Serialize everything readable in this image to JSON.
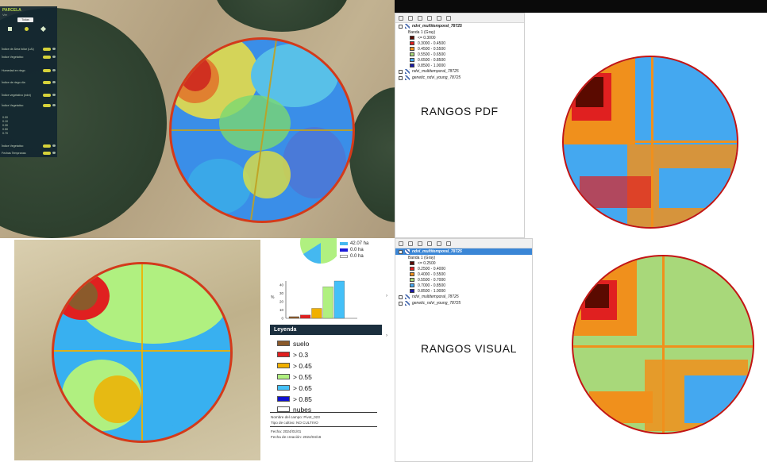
{
  "sidebar": {
    "title": "PARCELA",
    "subtitle": "Ver",
    "button": "Todas",
    "rows": [
      {
        "label": "Índice de Área foliar (LAI)"
      },
      {
        "label": "Índice Vegetativo"
      },
      {
        "label": "Humedad en riego"
      },
      {
        "label": "Índice de riego día"
      },
      {
        "label": "Índice vegetativo (ndvi)"
      },
      {
        "label": "Índice Vegetativo"
      }
    ],
    "values": [
      "0.00",
      "0.10",
      "0.30",
      "0.50",
      "0.70"
    ],
    "footer_rows": [
      {
        "label": "Índice Vegetativo"
      },
      {
        "label": "Fechas Tempranas"
      }
    ]
  },
  "qgis_top": {
    "layer_name": "ndvi_multitemporal_78725",
    "band": "Banda 1 (Gray)",
    "classes": [
      {
        "label": "<= 0.3000",
        "color": "#5a0a00"
      },
      {
        "label": "0.3000 - 0.4500",
        "color": "#e02020"
      },
      {
        "label": "0.4500 - 0.5500",
        "color": "#f0901c"
      },
      {
        "label": "0.5500 - 0.6500",
        "color": "#a8d87a"
      },
      {
        "label": "0.6500 - 0.8500",
        "color": "#44a8f0"
      },
      {
        "label": "0.8500 - 1.0000",
        "color": "#1a1aa8"
      }
    ],
    "other_layers": [
      "ndvi_multitemporal_78725",
      "genetic_ndvi_young_78725"
    ]
  },
  "qgis_bottom": {
    "layer_name": "ndvi_multitemporal_78725",
    "band": "Banda 1 (Gray)",
    "classes": [
      {
        "label": "<= 0.2500",
        "color": "#5a0a00"
      },
      {
        "label": "0.2500 - 0.4000",
        "color": "#e02020"
      },
      {
        "label": "0.4000 - 0.5500",
        "color": "#f0901c"
      },
      {
        "label": "0.5500 - 0.7000",
        "color": "#a8d87a"
      },
      {
        "label": "0.7000 - 0.8500",
        "color": "#44a8f0"
      },
      {
        "label": "0.8500 - 1.0000",
        "color": "#1a1aa8"
      }
    ],
    "other_layers": [
      "ndvi_multitemporal_78725",
      "genetic_ndvi_young_78725"
    ]
  },
  "labels": {
    "pdf": "RANGOS PDF",
    "visual": "RANGOS VISUAL"
  },
  "report": {
    "pie_legend": [
      {
        "label": "42.07 ha",
        "color": "#44b8f0"
      },
      {
        "label": "0.0 ha",
        "color": "#1a1ad8"
      },
      {
        "label": "0.0 ha",
        "color": "#ffffff"
      }
    ],
    "legend_title": "Leyenda",
    "legend": [
      {
        "label": "suelo",
        "color": "#8b5a2b"
      },
      {
        "label": "> 0.3",
        "color": "#e02020"
      },
      {
        "label": "> 0.45",
        "color": "#f0b000"
      },
      {
        "label": "> 0.55",
        "color": "#b0f080"
      },
      {
        "label": "> 0.65",
        "color": "#44c0f8"
      },
      {
        "label": "> 0.85",
        "color": "#1010d0"
      },
      {
        "label": "nubes",
        "color": "#ffffff"
      }
    ],
    "meta": {
      "field_name": "Nombre del campo: Pivot_023",
      "crop_type": "Tipo de cultivo: NO CULTIVO",
      "date": "Fecha: 2024/01/01",
      "created": "Fecha de creación: 2024/04/16"
    }
  },
  "chart_data": {
    "type": "bar",
    "categories": [
      "suelo",
      "> 0.3",
      "> 0.45",
      "> 0.55",
      "> 0.65",
      "> 0.85"
    ],
    "values": [
      2,
      4,
      12,
      38,
      45,
      0
    ],
    "colors": [
      "#8b5a2b",
      "#e02020",
      "#f0b000",
      "#b0f080",
      "#44c0f8",
      "#1010d0"
    ],
    "ylabel": "%",
    "ylim": [
      0,
      45
    ],
    "yticks": [
      "0",
      "10",
      "20",
      "30",
      "40"
    ],
    "grid": false
  }
}
